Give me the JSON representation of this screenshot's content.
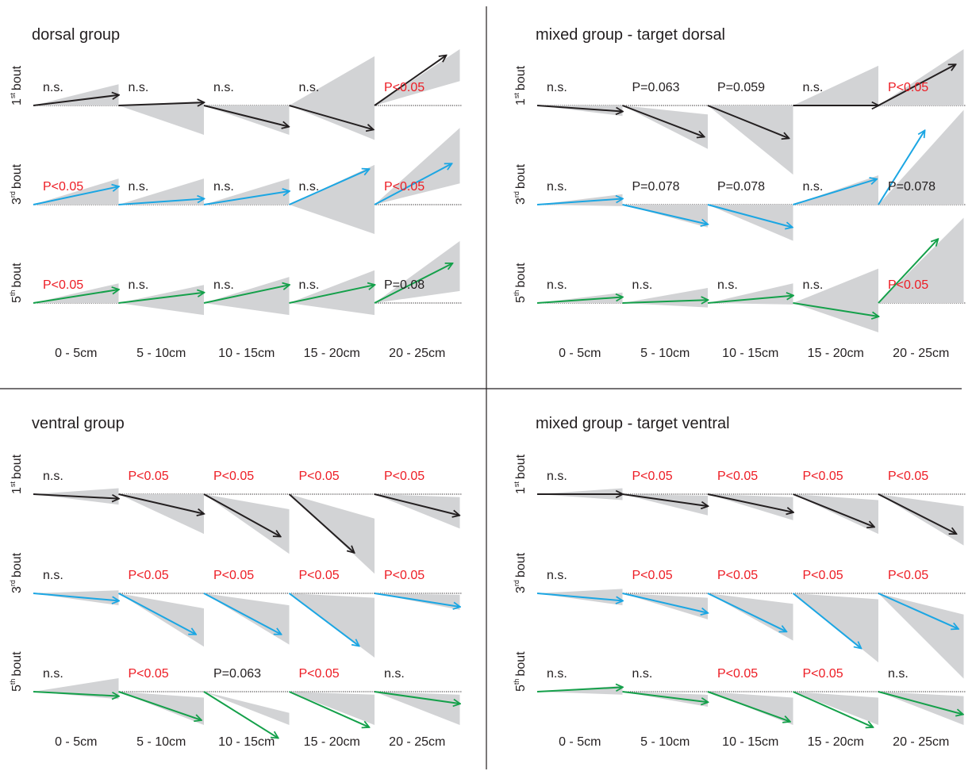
{
  "colors": {
    "black": "#231f20",
    "blue": "#1ba6e3",
    "green": "#14a04a",
    "red": "#ed1c24",
    "shade": "#d2d3d5",
    "label_default": "#231f20"
  },
  "x_labels": [
    "0 - 5cm",
    "5 - 10cm",
    "10 - 15cm",
    "15 - 20cm",
    "20 - 25cm"
  ],
  "panels": [
    {
      "title": "dorsal group",
      "rows": [
        {
          "ord": "1",
          "suffix": "st",
          "word": "bout",
          "color": "black",
          "cells": [
            {
              "label": "n.s.",
              "sig": false,
              "angle": 7,
              "cone": [
                0,
                14
              ]
            },
            {
              "label": "n.s.",
              "sig": false,
              "angle": 2,
              "cone": [
                -19,
                3
              ]
            },
            {
              "label": "n.s.",
              "sig": false,
              "angle": -14,
              "cone": [
                -19,
                0
              ]
            },
            {
              "label": "n.s.",
              "sig": false,
              "angle": -16,
              "cone": [
                -22,
                30
              ]
            },
            {
              "label": "P<0.05",
              "sig": true,
              "angle": 35,
              "cone": [
                16,
                42
              ]
            }
          ]
        },
        {
          "ord": "3",
          "suffix": "rd",
          "word": "bout",
          "color": "blue",
          "cells": [
            {
              "label": "P<0.05",
              "sig": true,
              "angle": 12,
              "cone": [
                0,
                17
              ]
            },
            {
              "label": "n.s.",
              "sig": false,
              "angle": 4,
              "cone": [
                0,
                17
              ]
            },
            {
              "label": "n.s.",
              "sig": false,
              "angle": 9,
              "cone": [
                0,
                17
              ]
            },
            {
              "label": "n.s.",
              "sig": false,
              "angle": 24,
              "cone": [
                -19,
                25
              ]
            },
            {
              "label": "P<0.05",
              "sig": true,
              "angle": 28,
              "cone": [
                14,
                42
              ]
            }
          ]
        },
        {
          "ord": "5",
          "suffix": "th",
          "word": "bout",
          "color": "green",
          "cells": [
            {
              "label": "P<0.05",
              "sig": true,
              "angle": 9,
              "cone": [
                0,
                13
              ]
            },
            {
              "label": "n.s.",
              "sig": false,
              "angle": 7,
              "cone": [
                -8,
                12
              ]
            },
            {
              "label": "n.s.",
              "sig": false,
              "angle": 12,
              "cone": [
                -8,
                17
              ]
            },
            {
              "label": "n.s.",
              "sig": false,
              "angle": 12,
              "cone": [
                -8,
                21
              ]
            },
            {
              "label": "P=0.08",
              "sig": false,
              "angle": 27,
              "cone": [
                8,
                36
              ]
            }
          ]
        }
      ]
    },
    {
      "title": "mixed group - target dorsal",
      "rows": [
        {
          "ord": "1",
          "suffix": "st",
          "word": "bout",
          "color": "black",
          "cells": [
            {
              "label": "n.s.",
              "sig": false,
              "angle": -4,
              "cone": [
                -7,
                0
              ]
            },
            {
              "label": "P=0.063",
              "sig": false,
              "angle": -21,
              "cone": [
                -27,
                -6
              ]
            },
            {
              "label": "P=0.059",
              "sig": false,
              "angle": -22,
              "cone": [
                -39,
                0
              ]
            },
            {
              "label": "n.s.",
              "sig": false,
              "angle": 0,
              "cone": [
                0,
                25
              ]
            },
            {
              "label": "P<0.05",
              "sig": true,
              "angle": 28,
              "cone": [
                0,
                41
              ]
            }
          ]
        },
        {
          "ord": "3",
          "suffix": "rd",
          "word": "bout",
          "color": "blue",
          "cells": [
            {
              "label": "n.s.",
              "sig": false,
              "angle": 4,
              "cone": [
                -1,
                7
              ]
            },
            {
              "label": "P=0.078",
              "sig": false,
              "angle": -13,
              "cone": [
                -15,
                0
              ]
            },
            {
              "label": "P=0.078",
              "sig": false,
              "angle": -15,
              "cone": [
                -23,
                0
              ]
            },
            {
              "label": "n.s.",
              "sig": false,
              "angle": 17,
              "cone": [
                0,
                19
              ]
            },
            {
              "label": "P=0.078",
              "sig": false,
              "angle": 58,
              "cone": [
                0,
                48
              ]
            }
          ]
        },
        {
          "ord": "5",
          "suffix": "th",
          "word": "bout",
          "color": "green",
          "cells": [
            {
              "label": "n.s.",
              "sig": false,
              "angle": 4,
              "cone": [
                0,
                7
              ]
            },
            {
              "label": "n.s.",
              "sig": false,
              "angle": 2,
              "cone": [
                -3,
                10
              ]
            },
            {
              "label": "n.s.",
              "sig": false,
              "angle": 5,
              "cone": [
                -1,
                13
              ]
            },
            {
              "label": "n.s.",
              "sig": false,
              "angle": -9,
              "cone": [
                -19,
                22
              ]
            },
            {
              "label": "P<0.05",
              "sig": true,
              "angle": 47,
              "cone": [
                0,
                45
              ]
            }
          ]
        }
      ]
    },
    {
      "title": "ventral group",
      "rows": [
        {
          "ord": "1",
          "suffix": "st",
          "word": "bout",
          "color": "black",
          "cells": [
            {
              "label": "n.s.",
              "sig": false,
              "angle": -3,
              "cone": [
                -7,
                4
              ]
            },
            {
              "label": "P<0.05",
              "sig": true,
              "angle": -13,
              "cone": [
                -25,
                0
              ]
            },
            {
              "label": "P<0.05",
              "sig": true,
              "angle": -29,
              "cone": [
                -35,
                -10
              ]
            },
            {
              "label": "P<0.05",
              "sig": true,
              "angle": -42,
              "cone": [
                -43,
                -16
              ]
            },
            {
              "label": "P<0.05",
              "sig": true,
              "angle": -14,
              "cone": [
                -22,
                -2
              ]
            }
          ]
        },
        {
          "ord": "3",
          "suffix": "rd",
          "word": "bout",
          "color": "blue",
          "cells": [
            {
              "label": "n.s.",
              "sig": false,
              "angle": -5,
              "cone": [
                -8,
                2
              ]
            },
            {
              "label": "P<0.05",
              "sig": true,
              "angle": -28,
              "cone": [
                -32,
                -10
              ]
            },
            {
              "label": "P<0.05",
              "sig": true,
              "angle": -28,
              "cone": [
                -31,
                -8
              ]
            },
            {
              "label": "P<0.05",
              "sig": true,
              "angle": -37,
              "cone": [
                -37,
                -3
              ]
            },
            {
              "label": "P<0.05",
              "sig": true,
              "angle": -9,
              "cone": [
                -11,
                -1
              ]
            }
          ]
        },
        {
          "ord": "5",
          "suffix": "th",
          "word": "bout",
          "color": "green",
          "cells": [
            {
              "label": "n.s.",
              "sig": false,
              "angle": -3,
              "cone": [
                -5,
                9
              ]
            },
            {
              "label": "P<0.05",
              "sig": true,
              "angle": -19,
              "cone": [
                -24,
                -4
              ]
            },
            {
              "label": "P=0.063",
              "sig": false,
              "angle": -32,
              "cone": [
                -40,
                -14
              ]
            },
            {
              "label": "P<0.05",
              "sig": true,
              "angle": -24,
              "cone": [
                -29,
                -2
              ]
            },
            {
              "label": "n.s.",
              "sig": false,
              "angle": -8,
              "cone": [
                -26,
                -2
              ]
            }
          ]
        }
      ]
    },
    {
      "title": "mixed group - target ventral",
      "rows": [
        {
          "ord": "1",
          "suffix": "st",
          "word": "bout",
          "color": "black",
          "cells": [
            {
              "label": "n.s.",
              "sig": false,
              "angle": 0,
              "cone": [
                -4,
                4
              ]
            },
            {
              "label": "P<0.05",
              "sig": true,
              "angle": -8,
              "cone": [
                -14,
                -1
              ]
            },
            {
              "label": "P<0.05",
              "sig": true,
              "angle": -12,
              "cone": [
                -17,
                -2
              ]
            },
            {
              "label": "P<0.05",
              "sig": true,
              "angle": -22,
              "cone": [
                -25,
                -4
              ]
            },
            {
              "label": "P<0.05",
              "sig": true,
              "angle": -27,
              "cone": [
                -31,
                -8
              ]
            }
          ]
        },
        {
          "ord": "3",
          "suffix": "rd",
          "word": "bout",
          "color": "blue",
          "cells": [
            {
              "label": "n.s.",
              "sig": false,
              "angle": -5,
              "cone": [
                -8,
                3
              ]
            },
            {
              "label": "P<0.05",
              "sig": true,
              "angle": -13,
              "cone": [
                -17,
                -3
              ]
            },
            {
              "label": "P<0.05",
              "sig": true,
              "angle": -26,
              "cone": [
                -29,
                -7
              ]
            },
            {
              "label": "P<0.05",
              "sig": true,
              "angle": -39,
              "cone": [
                -39,
                -4
              ]
            },
            {
              "label": "P<0.05",
              "sig": true,
              "angle": -24,
              "cone": [
                -45,
                -14
              ]
            }
          ]
        },
        {
          "ord": "5",
          "suffix": "th",
          "word": "bout",
          "color": "green",
          "cells": [
            {
              "label": "n.s.",
              "sig": false,
              "angle": 3,
              "cone": [
                -2,
                4
              ]
            },
            {
              "label": "n.s.",
              "sig": false,
              "angle": -7,
              "cone": [
                -10,
                -2
              ]
            },
            {
              "label": "P<0.05",
              "sig": true,
              "angle": -20,
              "cone": [
                -24,
                -4
              ]
            },
            {
              "label": "P<0.05",
              "sig": true,
              "angle": -24,
              "cone": [
                -46,
                -4
              ]
            },
            {
              "label": "n.s.",
              "sig": false,
              "angle": -15,
              "cone": [
                -22,
                -3
              ]
            }
          ]
        }
      ]
    }
  ]
}
